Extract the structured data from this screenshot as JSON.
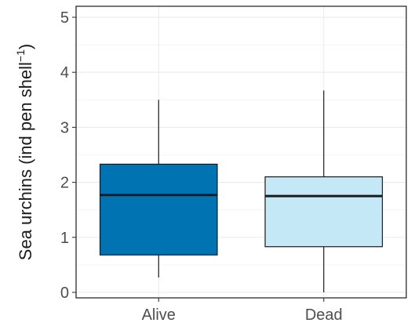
{
  "chart_data": {
    "type": "box",
    "ylabel": "Sea urchins (ind pen shell",
    "ylabel_superscript": "−1",
    "ylabel_close": ")",
    "xlabel": "",
    "ylim": [
      -0.1,
      5.2
    ],
    "y_ticks": [
      0,
      1,
      2,
      3,
      4,
      5
    ],
    "y_tick_labels": [
      "0",
      "1",
      "2",
      "3",
      "4",
      "5"
    ],
    "grid": true,
    "categories": [
      "Alive",
      "Dead"
    ],
    "boxes": [
      {
        "label": "Alive",
        "whisker_low": 0.27,
        "q1": 0.68,
        "median": 1.77,
        "q3": 2.33,
        "whisker_high": 3.5,
        "color": "#0073B3"
      },
      {
        "label": "Dead",
        "whisker_low": 0.0,
        "q1": 0.83,
        "median": 1.75,
        "q3": 2.1,
        "whisker_high": 3.67,
        "color": "#C5E8F7"
      }
    ]
  }
}
